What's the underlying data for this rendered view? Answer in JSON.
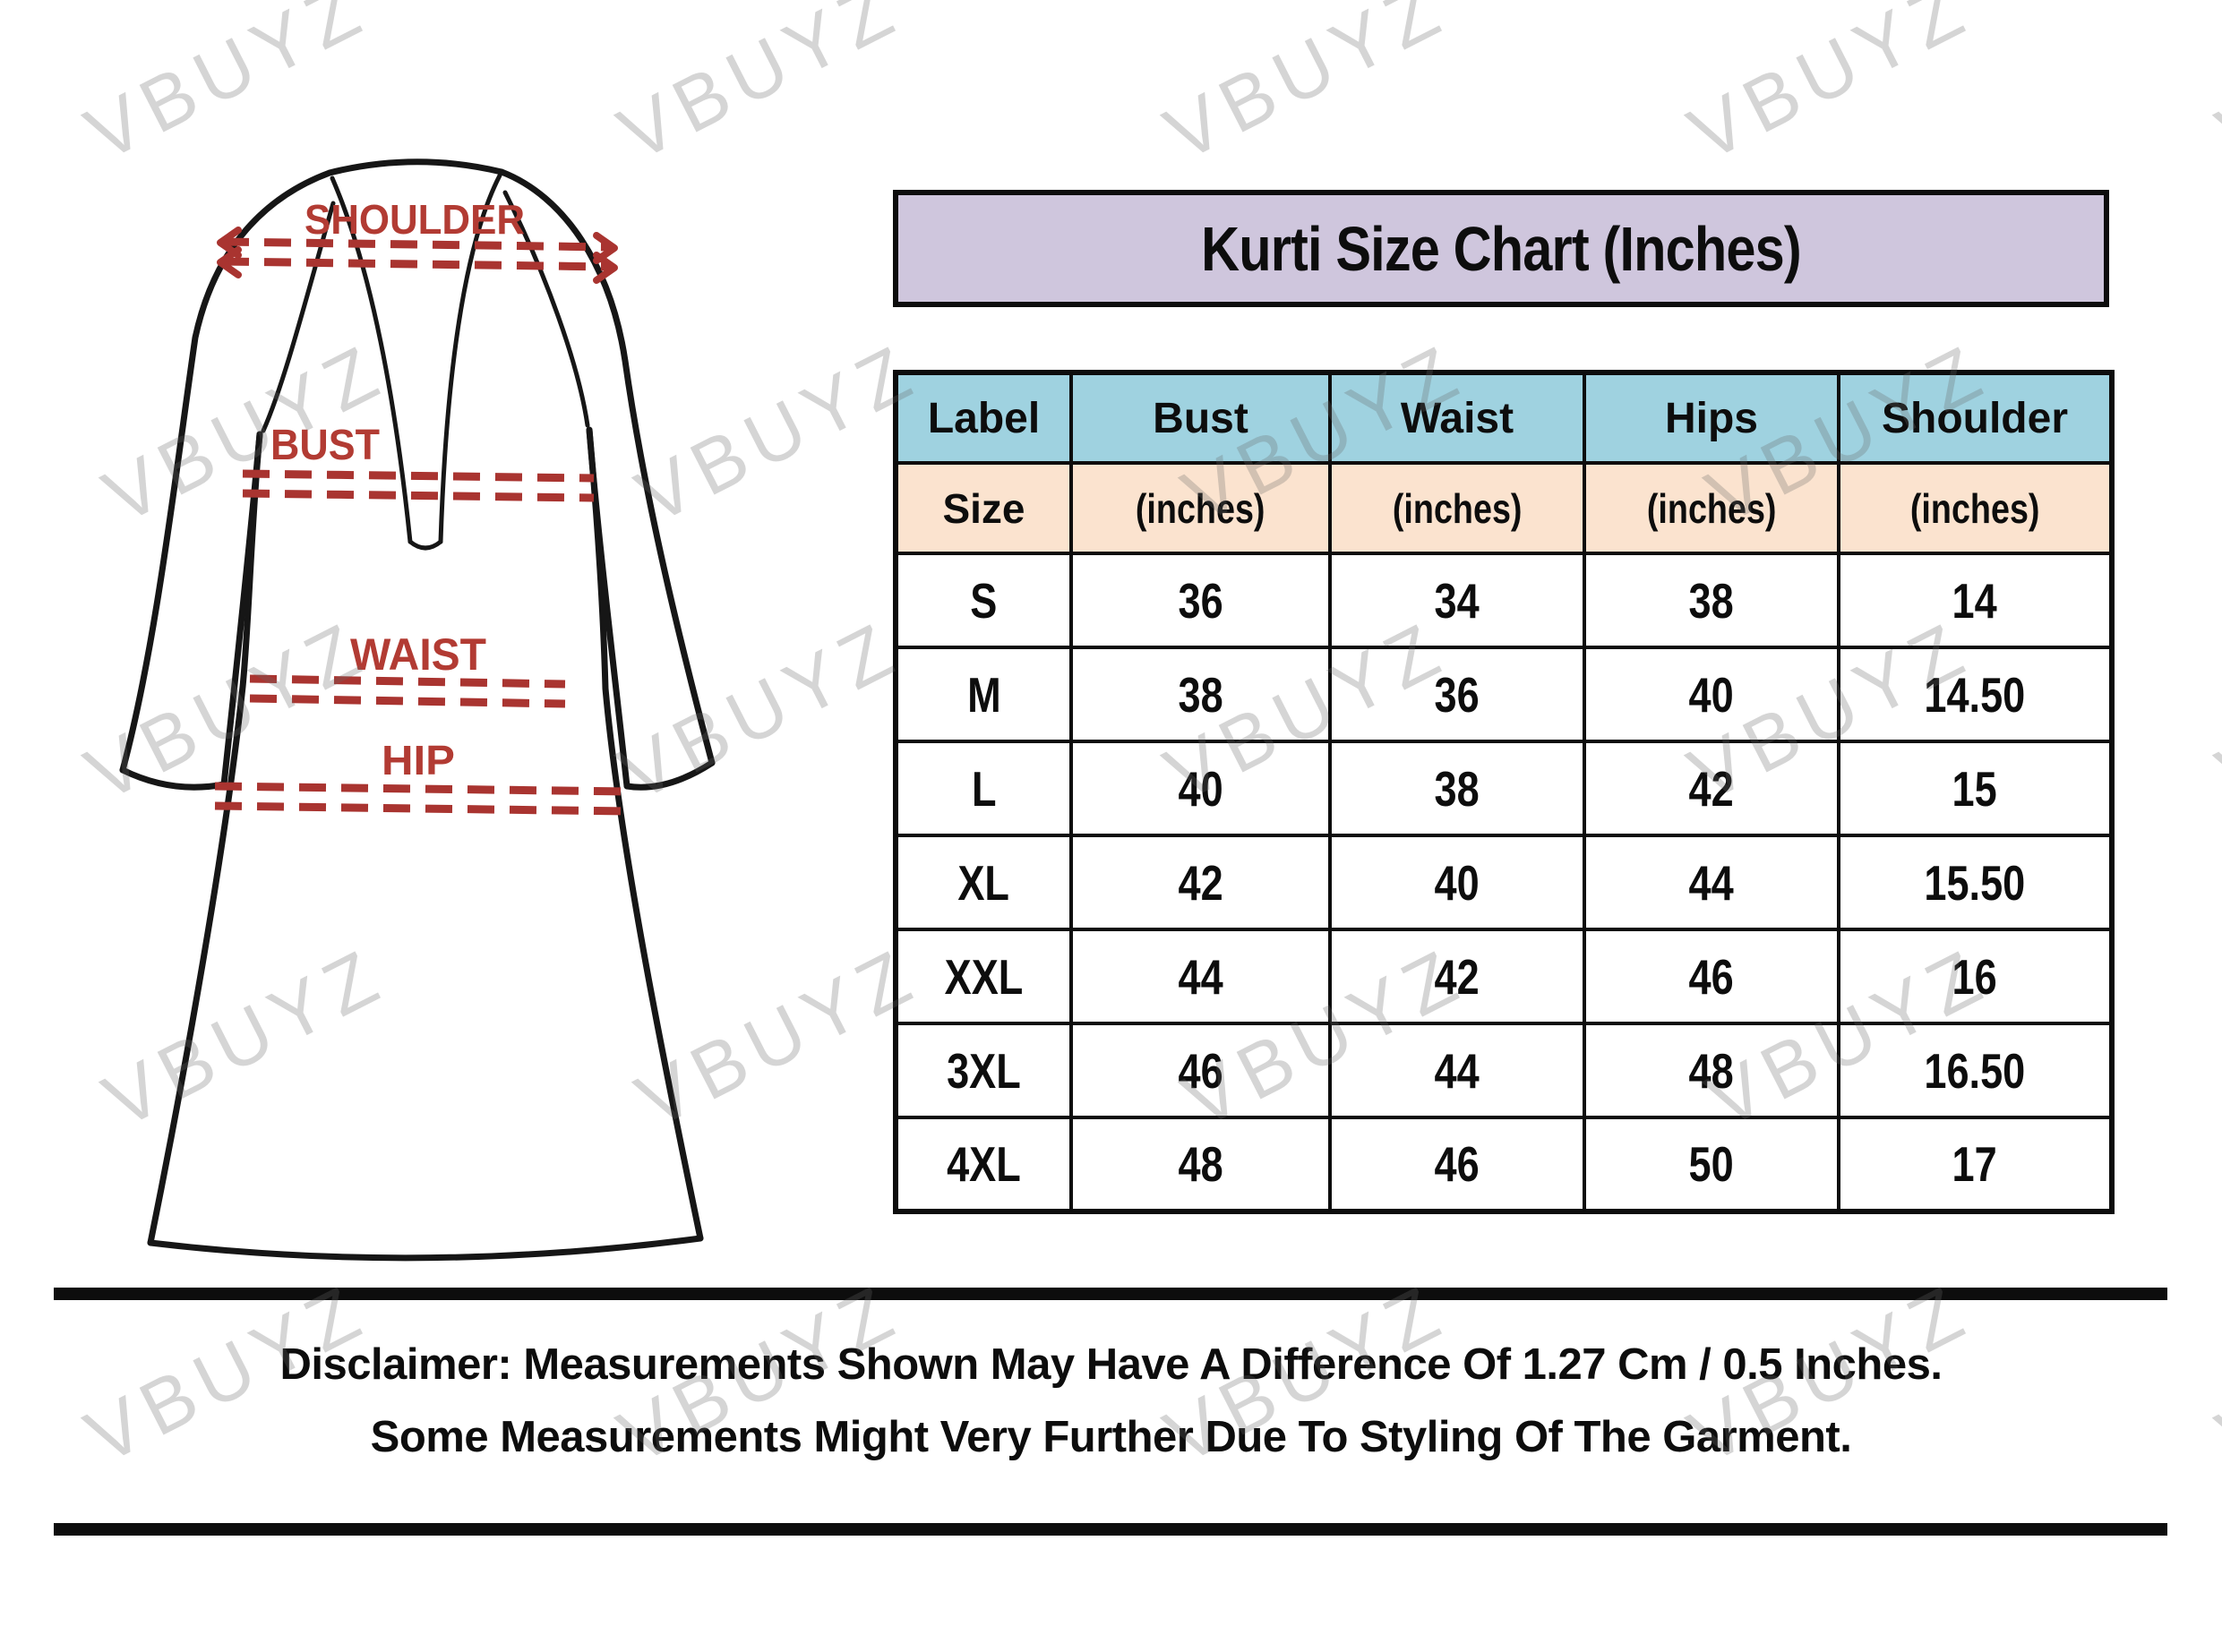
{
  "watermark": {
    "text": "VBUYZ",
    "color": "#d6d6d6"
  },
  "diagram": {
    "shoulder_label": "SHOULDER",
    "bust_label": "BUST",
    "waist_label": "WAIST",
    "hip_label": "HIP",
    "label_color": "#b23b33",
    "dash_color": "#a93430",
    "outline_color": "#161616"
  },
  "chart_data": {
    "type": "table",
    "title": "Kurti Size Chart (Inches)",
    "columns": [
      "Label",
      "Bust",
      "Waist",
      "Hips",
      "Shoulder"
    ],
    "units": [
      "Size",
      "(inches)",
      "(inches)",
      "(inches)",
      "(inches)"
    ],
    "rows": [
      [
        "S",
        "36",
        "34",
        "38",
        "14"
      ],
      [
        "M",
        "38",
        "36",
        "40",
        "14.50"
      ],
      [
        "L",
        "40",
        "38",
        "42",
        "15"
      ],
      [
        "XL",
        "42",
        "40",
        "44",
        "15.50"
      ],
      [
        "XXL",
        "44",
        "42",
        "46",
        "16"
      ],
      [
        "3XL",
        "46",
        "44",
        "48",
        "16.50"
      ],
      [
        "4XL",
        "48",
        "46",
        "50",
        "17"
      ]
    ],
    "title_bg": "#cfc6dd",
    "header_bg": "#9fd2e0",
    "units_bg": "#fbe3cf"
  },
  "disclaimer": {
    "line1": "Disclaimer: Measurements Shown May Have A Difference Of 1.27 Cm / 0.5 Inches.",
    "line2": "Some Measurements Might Very Further Due To Styling Of The Garment."
  }
}
